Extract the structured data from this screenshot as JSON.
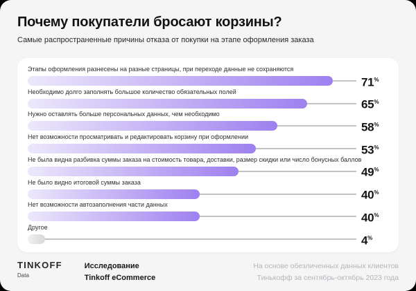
{
  "chart_data": {
    "type": "bar",
    "orientation": "horizontal",
    "title": "Почему покупатели бросают корзины?",
    "subtitle": "Самые распространенные причины отказа от покупки на этапе оформления заказа",
    "unit": "%",
    "categories": [
      "Этапы оформления разнесены на разные страницы, при переходе данные не сохраняются",
      "Необходимо долго заполнять большое количество обязательных полей",
      "Нужно оставлять больше персональных данных, чем необходимо",
      "Нет возможности просматривать и редактировать корзину при оформлении",
      "Не была видна разбивка суммы заказа на стоимость товара, доставки, размер скидки или число бонусных баллов",
      "Не было видно итоговой суммы заказа",
      "Нет возможности автозаполнения части данных",
      "Другое"
    ],
    "values": [
      71,
      65,
      58,
      53,
      49,
      40,
      40,
      4
    ],
    "bar_styles": [
      "accent",
      "accent",
      "accent",
      "accent",
      "accent",
      "accent",
      "accent",
      "muted"
    ],
    "xlim": [
      0,
      80
    ],
    "value_labels_shown": true,
    "legend": "none",
    "grid": "off"
  },
  "footer": {
    "logo_name": "TINKOFF",
    "logo_sub": "Data",
    "study_line1": "Исследование",
    "study_line2": "Tinkoff eCommerce",
    "source_line1": "На основе обезличенных данных клиентов",
    "source_line2": "Тинькофф за сентябрь-октябрь 2023 года"
  },
  "colors": {
    "card_bg": "#f5f5f6",
    "panel_bg": "#ffffff",
    "bar_gradient_start": "#ece8fb",
    "bar_gradient_end": "#9f80f0",
    "muted_gradient_start": "#f2f2f3",
    "muted_gradient_end": "#d7d7d9",
    "connector": "#c2c2c6",
    "title_text": "#121215",
    "source_text": "#b5b5bb"
  }
}
